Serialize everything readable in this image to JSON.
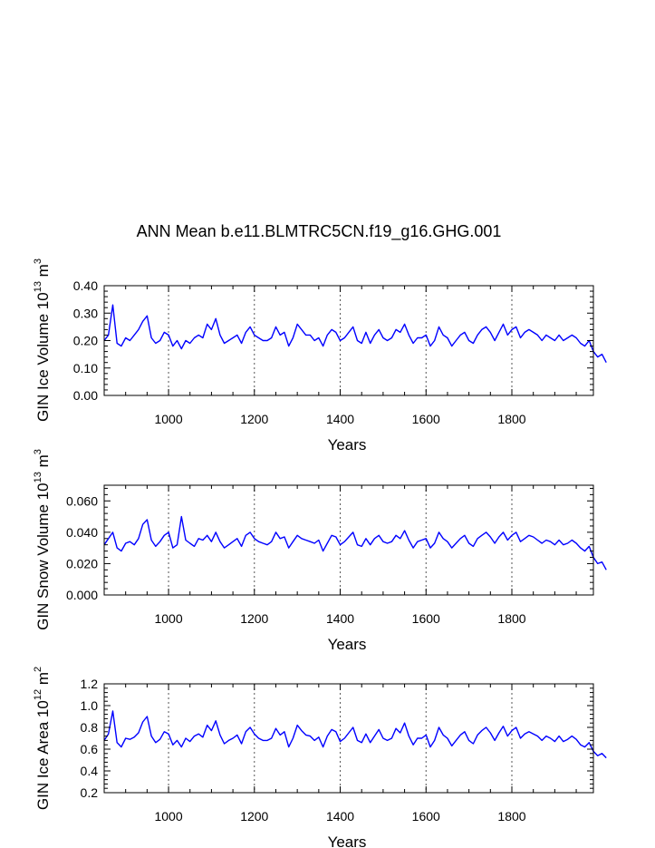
{
  "figure": {
    "title": "ANN Mean b.e11.BLMTRC5CN.f19_g16.GHG.001"
  },
  "chart_data": [
    {
      "type": "line",
      "ylabel": {
        "text": "GIN Ice Volume 10",
        "exp": "13",
        "unit": " m",
        "unit_exp": "3"
      },
      "xlabel": "Years",
      "xlim": [
        850,
        1990
      ],
      "ylim": [
        0,
        0.4
      ],
      "x_ticks": [
        "1000",
        "1200",
        "1400",
        "1600",
        "1800"
      ],
      "x_tick_values": [
        1000,
        1200,
        1400,
        1600,
        1800
      ],
      "y_ticks": [
        "0.00",
        "0.10",
        "0.20",
        "0.30",
        "0.40"
      ],
      "y_tick_values": [
        0,
        0.1,
        0.2,
        0.3,
        0.4
      ],
      "grid": "vertical dotted lines at major x ticks",
      "color": "#0000ff",
      "series": [
        {
          "x_start": 850,
          "x_step": 10,
          "values": [
            0.2,
            0.22,
            0.33,
            0.19,
            0.18,
            0.21,
            0.2,
            0.22,
            0.24,
            0.27,
            0.29,
            0.21,
            0.19,
            0.2,
            0.23,
            0.22,
            0.18,
            0.2,
            0.17,
            0.2,
            0.19,
            0.21,
            0.22,
            0.21,
            0.26,
            0.24,
            0.28,
            0.22,
            0.19,
            0.2,
            0.21,
            0.22,
            0.19,
            0.23,
            0.25,
            0.22,
            0.21,
            0.2,
            0.2,
            0.21,
            0.25,
            0.22,
            0.23,
            0.18,
            0.21,
            0.26,
            0.24,
            0.22,
            0.22,
            0.2,
            0.21,
            0.18,
            0.22,
            0.24,
            0.23,
            0.2,
            0.21,
            0.23,
            0.25,
            0.2,
            0.19,
            0.23,
            0.19,
            0.22,
            0.24,
            0.21,
            0.2,
            0.21,
            0.24,
            0.23,
            0.26,
            0.22,
            0.19,
            0.21,
            0.21,
            0.22,
            0.18,
            0.2,
            0.25,
            0.22,
            0.21,
            0.18,
            0.2,
            0.22,
            0.23,
            0.2,
            0.19,
            0.22,
            0.24,
            0.25,
            0.23,
            0.2,
            0.23,
            0.26,
            0.22,
            0.24,
            0.25,
            0.21,
            0.23,
            0.24,
            0.23,
            0.22,
            0.2,
            0.22,
            0.21,
            0.2,
            0.22,
            0.2,
            0.21,
            0.22,
            0.21,
            0.19,
            0.18,
            0.2,
            0.16,
            0.14,
            0.15,
            0.12
          ]
        }
      ]
    },
    {
      "type": "line",
      "ylabel": {
        "text": "GIN Snow Volume 10",
        "exp": "13",
        "unit": " m",
        "unit_exp": "3"
      },
      "xlabel": "Years",
      "xlim": [
        850,
        1990
      ],
      "ylim": [
        0,
        0.07
      ],
      "x_ticks": [
        "1000",
        "1200",
        "1400",
        "1600",
        "1800"
      ],
      "x_tick_values": [
        1000,
        1200,
        1400,
        1600,
        1800
      ],
      "y_ticks": [
        "0.000",
        "0.020",
        "0.040",
        "0.060"
      ],
      "y_tick_values": [
        0,
        0.02,
        0.04,
        0.06
      ],
      "grid": "vertical dotted lines at major x ticks",
      "color": "#0000ff",
      "series": [
        {
          "x_start": 850,
          "x_step": 10,
          "values": [
            0.032,
            0.036,
            0.04,
            0.03,
            0.028,
            0.033,
            0.034,
            0.032,
            0.036,
            0.045,
            0.048,
            0.035,
            0.031,
            0.034,
            0.038,
            0.04,
            0.03,
            0.032,
            0.05,
            0.035,
            0.033,
            0.031,
            0.036,
            0.035,
            0.038,
            0.034,
            0.04,
            0.034,
            0.03,
            0.032,
            0.034,
            0.036,
            0.031,
            0.038,
            0.04,
            0.036,
            0.034,
            0.033,
            0.032,
            0.034,
            0.04,
            0.036,
            0.037,
            0.03,
            0.034,
            0.038,
            0.036,
            0.035,
            0.034,
            0.033,
            0.035,
            0.028,
            0.033,
            0.038,
            0.037,
            0.032,
            0.034,
            0.037,
            0.04,
            0.032,
            0.031,
            0.036,
            0.032,
            0.036,
            0.038,
            0.034,
            0.033,
            0.034,
            0.038,
            0.036,
            0.041,
            0.035,
            0.03,
            0.034,
            0.035,
            0.036,
            0.03,
            0.033,
            0.04,
            0.036,
            0.034,
            0.03,
            0.033,
            0.036,
            0.038,
            0.033,
            0.031,
            0.036,
            0.038,
            0.04,
            0.037,
            0.033,
            0.037,
            0.04,
            0.035,
            0.038,
            0.04,
            0.034,
            0.036,
            0.038,
            0.037,
            0.035,
            0.033,
            0.035,
            0.034,
            0.032,
            0.035,
            0.032,
            0.033,
            0.035,
            0.033,
            0.03,
            0.028,
            0.031,
            0.024,
            0.02,
            0.021,
            0.016
          ]
        }
      ]
    },
    {
      "type": "line",
      "ylabel": {
        "text": "GIN Ice Area 10",
        "exp": "12",
        "unit": " m",
        "unit_exp": "2"
      },
      "xlabel": "Years",
      "xlim": [
        850,
        1990
      ],
      "ylim": [
        0.2,
        1.2
      ],
      "x_ticks": [
        "1000",
        "1200",
        "1400",
        "1600",
        "1800"
      ],
      "x_tick_values": [
        1000,
        1200,
        1400,
        1600,
        1800
      ],
      "y_ticks": [
        "0.2",
        "0.4",
        "0.6",
        "0.8",
        "1.0",
        "1.2"
      ],
      "y_tick_values": [
        0.2,
        0.4,
        0.6,
        0.8,
        1.0,
        1.2
      ],
      "grid": "vertical dotted lines at major x ticks",
      "color": "#0000ff",
      "series": [
        {
          "x_start": 850,
          "x_step": 10,
          "values": [
            0.68,
            0.74,
            0.95,
            0.66,
            0.62,
            0.7,
            0.69,
            0.71,
            0.75,
            0.85,
            0.9,
            0.72,
            0.66,
            0.69,
            0.76,
            0.74,
            0.64,
            0.68,
            0.62,
            0.7,
            0.67,
            0.72,
            0.74,
            0.71,
            0.82,
            0.77,
            0.86,
            0.73,
            0.65,
            0.68,
            0.7,
            0.73,
            0.65,
            0.76,
            0.8,
            0.74,
            0.7,
            0.68,
            0.68,
            0.7,
            0.79,
            0.73,
            0.76,
            0.62,
            0.7,
            0.82,
            0.77,
            0.73,
            0.72,
            0.68,
            0.71,
            0.62,
            0.72,
            0.78,
            0.76,
            0.67,
            0.7,
            0.75,
            0.8,
            0.68,
            0.66,
            0.74,
            0.66,
            0.72,
            0.78,
            0.7,
            0.68,
            0.7,
            0.79,
            0.75,
            0.84,
            0.72,
            0.64,
            0.7,
            0.7,
            0.73,
            0.62,
            0.68,
            0.8,
            0.73,
            0.7,
            0.63,
            0.68,
            0.73,
            0.76,
            0.68,
            0.65,
            0.73,
            0.77,
            0.8,
            0.75,
            0.68,
            0.75,
            0.81,
            0.72,
            0.77,
            0.8,
            0.7,
            0.74,
            0.76,
            0.74,
            0.72,
            0.68,
            0.72,
            0.7,
            0.67,
            0.72,
            0.67,
            0.69,
            0.72,
            0.69,
            0.64,
            0.62,
            0.66,
            0.58,
            0.54,
            0.56,
            0.52
          ]
        }
      ]
    }
  ]
}
